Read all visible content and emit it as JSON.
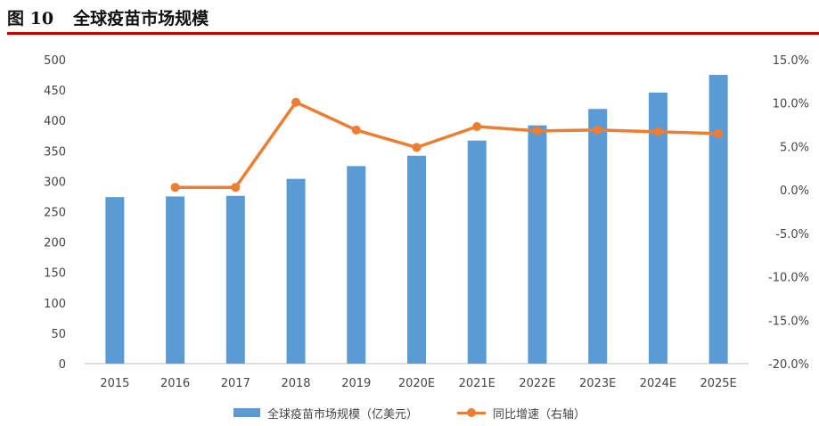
{
  "figure": {
    "number": "图 10",
    "title": "全球疫苗市场规模"
  },
  "colors": {
    "bar": "#5b9bd5",
    "line": "#ed7d31",
    "title_rule": "#c00000",
    "axis": "#bfbfbf"
  },
  "chart_data": {
    "type": "bar",
    "title": "全球疫苗市场规模",
    "categories": [
      "2015",
      "2016",
      "2017",
      "2018",
      "2019",
      "2020E",
      "2021E",
      "2022E",
      "2023E",
      "2024E",
      "2025E"
    ],
    "series": [
      {
        "name": "全球疫苗市场规模（亿美元）",
        "type": "bar",
        "axis": "left",
        "values": [
          274,
          275,
          276,
          304,
          325,
          342,
          367,
          392,
          419,
          446,
          475
        ]
      },
      {
        "name": "同比增速（右轴）",
        "type": "line",
        "axis": "right",
        "values": [
          null,
          0.3,
          0.3,
          10.1,
          6.9,
          4.9,
          7.3,
          6.8,
          6.9,
          6.7,
          6.5
        ]
      }
    ],
    "y_left": {
      "min": 0,
      "max": 500,
      "ticks": [
        0,
        50,
        100,
        150,
        200,
        250,
        300,
        350,
        400,
        450,
        500
      ]
    },
    "y_right": {
      "min": -20,
      "max": 15,
      "ticks": [
        -20,
        -15,
        -10,
        -5,
        0,
        5,
        10,
        15
      ],
      "tick_labels": [
        "-20.0%",
        "-15.0%",
        "-10.0%",
        "-5.0%",
        "0.0%",
        "5.0%",
        "10.0%",
        "15.0%"
      ]
    },
    "grid": false,
    "legend_position": "bottom"
  }
}
